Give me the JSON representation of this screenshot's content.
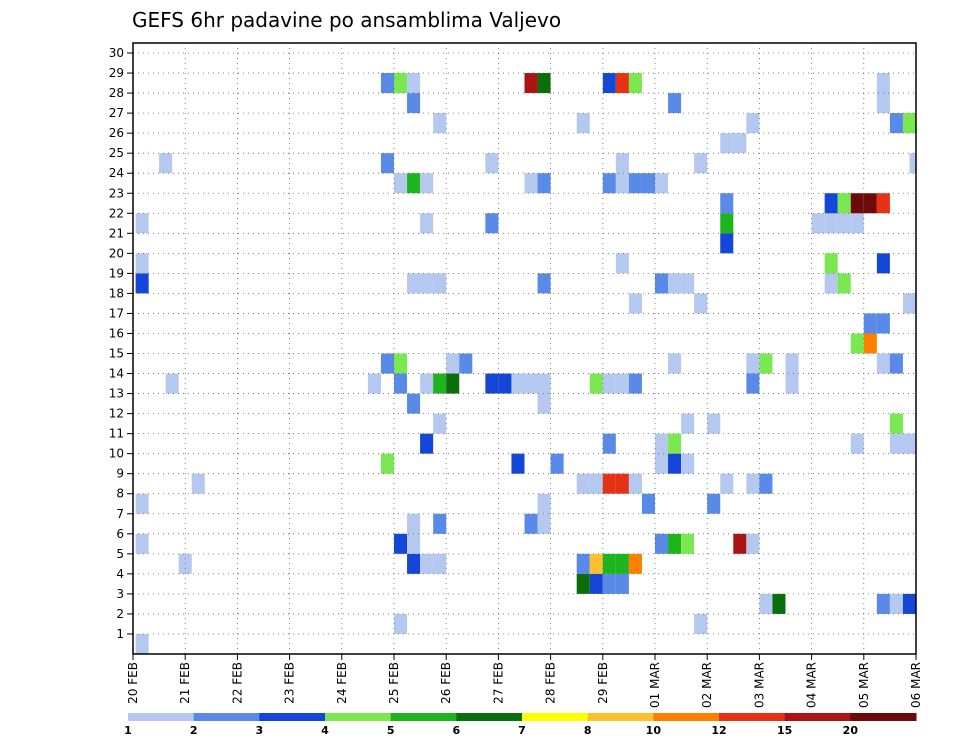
{
  "chart_data": {
    "type": "heatmap",
    "title": "GEFS 6hr padavine po ansamblima Valjevo",
    "xlabel": "",
    "ylabel": "",
    "y_ticks": [
      "1",
      "2",
      "3",
      "4",
      "5",
      "6",
      "7",
      "8",
      "9",
      "10",
      "11",
      "12",
      "13",
      "14",
      "15",
      "16",
      "17",
      "18",
      "19",
      "20",
      "21",
      "22",
      "23",
      "24",
      "25",
      "26",
      "27",
      "28",
      "29",
      "30"
    ],
    "ylim": [
      0,
      30
    ],
    "x_ticks": [
      "20 FEB",
      "21 FEB",
      "22 FEB",
      "23 FEB",
      "24 FEB",
      "25 FEB",
      "26 FEB",
      "27 FEB",
      "28 FEB",
      "29 FEB",
      "01 MAR",
      "02 MAR",
      "03 MAR",
      "04 MAR",
      "05 MAR",
      "06 MAR"
    ],
    "time_steps_per_day": 4,
    "total_steps": 60,
    "grid": "dotted",
    "legend": {
      "placement": "bottom",
      "labels": [
        "1",
        "2",
        "3",
        "4",
        "5",
        "6",
        "7",
        "8",
        "10",
        "12",
        "15",
        "20"
      ],
      "colors": [
        "#b4c8f0",
        "#5a8ae8",
        "#1446d7",
        "#7ae850",
        "#1eb41e",
        "#0a6e0a",
        "#ffff00",
        "#ffc030",
        "#ff8000",
        "#e63214",
        "#aa1414",
        "#6e0a0a"
      ]
    },
    "cells": [
      {
        "m": 1,
        "t": 0.2,
        "v": 1
      },
      {
        "m": 2,
        "t": 20,
        "v": 1
      },
      {
        "m": 2,
        "t": 43,
        "v": 1
      },
      {
        "m": 3,
        "t": 48,
        "v": 1
      },
      {
        "m": 3,
        "t": 49,
        "v": 6
      },
      {
        "m": 3,
        "t": 57,
        "v": 2
      },
      {
        "m": 3,
        "t": 58,
        "v": 1
      },
      {
        "m": 3,
        "t": 59,
        "v": 3
      },
      {
        "m": 4,
        "t": 34,
        "v": 6
      },
      {
        "m": 4,
        "t": 35,
        "v": 3
      },
      {
        "m": 4,
        "t": 36,
        "v": 2
      },
      {
        "m": 4,
        "t": 37,
        "v": 2
      },
      {
        "m": 5,
        "t": 3.5,
        "v": 1
      },
      {
        "m": 5,
        "t": 21,
        "v": 3
      },
      {
        "m": 5,
        "t": 22,
        "v": 1
      },
      {
        "m": 5,
        "t": 23,
        "v": 1
      },
      {
        "m": 5,
        "t": 34,
        "v": 2
      },
      {
        "m": 5,
        "t": 35,
        "v": 8
      },
      {
        "m": 5,
        "t": 36,
        "v": 5
      },
      {
        "m": 5,
        "t": 37,
        "v": 5
      },
      {
        "m": 5,
        "t": 38,
        "v": 10
      },
      {
        "m": 6,
        "t": 0.2,
        "v": 1
      },
      {
        "m": 6,
        "t": 20,
        "v": 3
      },
      {
        "m": 6,
        "t": 21,
        "v": 1
      },
      {
        "m": 6,
        "t": 40,
        "v": 2
      },
      {
        "m": 6,
        "t": 41,
        "v": 5
      },
      {
        "m": 6,
        "t": 42,
        "v": 4
      },
      {
        "m": 6,
        "t": 46,
        "v": 15
      },
      {
        "m": 6,
        "t": 47,
        "v": 1
      },
      {
        "m": 7,
        "t": 21,
        "v": 1
      },
      {
        "m": 7,
        "t": 23,
        "v": 2
      },
      {
        "m": 7,
        "t": 30,
        "v": 2
      },
      {
        "m": 7,
        "t": 31,
        "v": 1
      },
      {
        "m": 8,
        "t": 0.2,
        "v": 1
      },
      {
        "m": 8,
        "t": 31,
        "v": 1
      },
      {
        "m": 8,
        "t": 39,
        "v": 2
      },
      {
        "m": 8,
        "t": 44,
        "v": 2
      },
      {
        "m": 9,
        "t": 4.5,
        "v": 1
      },
      {
        "m": 9,
        "t": 34,
        "v": 1
      },
      {
        "m": 9,
        "t": 35,
        "v": 1
      },
      {
        "m": 9,
        "t": 36,
        "v": 12
      },
      {
        "m": 9,
        "t": 37,
        "v": 12
      },
      {
        "m": 9,
        "t": 38,
        "v": 1
      },
      {
        "m": 9,
        "t": 45,
        "v": 1
      },
      {
        "m": 9,
        "t": 47,
        "v": 1
      },
      {
        "m": 9,
        "t": 48,
        "v": 2
      },
      {
        "m": 10,
        "t": 19,
        "v": 4
      },
      {
        "m": 10,
        "t": 29,
        "v": 3
      },
      {
        "m": 10,
        "t": 32,
        "v": 2
      },
      {
        "m": 10,
        "t": 40,
        "v": 1
      },
      {
        "m": 10,
        "t": 41,
        "v": 3
      },
      {
        "m": 10,
        "t": 42,
        "v": 1
      },
      {
        "m": 11,
        "t": 22,
        "v": 3
      },
      {
        "m": 11,
        "t": 36,
        "v": 2
      },
      {
        "m": 11,
        "t": 40,
        "v": 1
      },
      {
        "m": 11,
        "t": 41,
        "v": 4
      },
      {
        "m": 11,
        "t": 55,
        "v": 1
      },
      {
        "m": 11,
        "t": 58,
        "v": 1
      },
      {
        "m": 11,
        "t": 59,
        "v": 1
      },
      {
        "m": 12,
        "t": 23,
        "v": 1
      },
      {
        "m": 12,
        "t": 42,
        "v": 1
      },
      {
        "m": 12,
        "t": 44,
        "v": 1
      },
      {
        "m": 12,
        "t": 58,
        "v": 4
      },
      {
        "m": 13,
        "t": 21,
        "v": 2
      },
      {
        "m": 13,
        "t": 31,
        "v": 1
      },
      {
        "m": 14,
        "t": 2.5,
        "v": 1
      },
      {
        "m": 14,
        "t": 18,
        "v": 1
      },
      {
        "m": 14,
        "t": 20,
        "v": 2
      },
      {
        "m": 14,
        "t": 22,
        "v": 1
      },
      {
        "m": 14,
        "t": 23,
        "v": 5
      },
      {
        "m": 14,
        "t": 24,
        "v": 6
      },
      {
        "m": 14,
        "t": 27,
        "v": 3
      },
      {
        "m": 14,
        "t": 28,
        "v": 3
      },
      {
        "m": 14,
        "t": 29,
        "v": 1
      },
      {
        "m": 14,
        "t": 30,
        "v": 1
      },
      {
        "m": 14,
        "t": 31,
        "v": 1
      },
      {
        "m": 14,
        "t": 35,
        "v": 4
      },
      {
        "m": 14,
        "t": 36,
        "v": 1
      },
      {
        "m": 14,
        "t": 37,
        "v": 1
      },
      {
        "m": 14,
        "t": 38,
        "v": 2
      },
      {
        "m": 14,
        "t": 47,
        "v": 2
      },
      {
        "m": 14,
        "t": 50,
        "v": 1
      },
      {
        "m": 15,
        "t": 19,
        "v": 2
      },
      {
        "m": 15,
        "t": 20,
        "v": 4
      },
      {
        "m": 15,
        "t": 24,
        "v": 1
      },
      {
        "m": 15,
        "t": 25,
        "v": 2
      },
      {
        "m": 15,
        "t": 41,
        "v": 1
      },
      {
        "m": 15,
        "t": 47,
        "v": 1
      },
      {
        "m": 15,
        "t": 48,
        "v": 4
      },
      {
        "m": 15,
        "t": 50,
        "v": 1
      },
      {
        "m": 15,
        "t": 57,
        "v": 1
      },
      {
        "m": 15,
        "t": 58,
        "v": 2
      },
      {
        "m": 16,
        "t": 55,
        "v": 4
      },
      {
        "m": 16,
        "t": 56,
        "v": 10
      },
      {
        "m": 17,
        "t": 56,
        "v": 2
      },
      {
        "m": 17,
        "t": 57,
        "v": 2
      },
      {
        "m": 18,
        "t": 38,
        "v": 1
      },
      {
        "m": 18,
        "t": 43,
        "v": 1
      },
      {
        "m": 18,
        "t": 59,
        "v": 1
      },
      {
        "m": 19,
        "t": 0.2,
        "v": 3
      },
      {
        "m": 19,
        "t": 21,
        "v": 1
      },
      {
        "m": 19,
        "t": 22,
        "v": 1
      },
      {
        "m": 19,
        "t": 23,
        "v": 1
      },
      {
        "m": 19,
        "t": 31,
        "v": 2
      },
      {
        "m": 19,
        "t": 40,
        "v": 2
      },
      {
        "m": 19,
        "t": 41,
        "v": 1
      },
      {
        "m": 19,
        "t": 42,
        "v": 1
      },
      {
        "m": 19,
        "t": 53,
        "v": 1
      },
      {
        "m": 19,
        "t": 54,
        "v": 4
      },
      {
        "m": 20,
        "t": 0.2,
        "v": 1
      },
      {
        "m": 20,
        "t": 37,
        "v": 1
      },
      {
        "m": 20,
        "t": 53,
        "v": 4
      },
      {
        "m": 20,
        "t": 57,
        "v": 3
      },
      {
        "m": 21,
        "t": 45,
        "v": 3
      },
      {
        "m": 22,
        "t": 0.2,
        "v": 1
      },
      {
        "m": 22,
        "t": 22,
        "v": 1
      },
      {
        "m": 22,
        "t": 27,
        "v": 2
      },
      {
        "m": 22,
        "t": 45,
        "v": 5
      },
      {
        "m": 22,
        "t": 52,
        "v": 1
      },
      {
        "m": 22,
        "t": 53,
        "v": 1
      },
      {
        "m": 22,
        "t": 54,
        "v": 1
      },
      {
        "m": 22,
        "t": 55,
        "v": 1
      },
      {
        "m": 23,
        "t": 45,
        "v": 2
      },
      {
        "m": 23,
        "t": 53,
        "v": 3
      },
      {
        "m": 23,
        "t": 54,
        "v": 4
      },
      {
        "m": 23,
        "t": 55,
        "v": 20
      },
      {
        "m": 23,
        "t": 56,
        "v": 20
      },
      {
        "m": 23,
        "t": 57,
        "v": 12
      },
      {
        "m": 24,
        "t": 20,
        "v": 1
      },
      {
        "m": 24,
        "t": 21,
        "v": 5
      },
      {
        "m": 24,
        "t": 22,
        "v": 1
      },
      {
        "m": 24,
        "t": 30,
        "v": 1
      },
      {
        "m": 24,
        "t": 31,
        "v": 2
      },
      {
        "m": 24,
        "t": 36,
        "v": 2
      },
      {
        "m": 24,
        "t": 37,
        "v": 1
      },
      {
        "m": 24,
        "t": 38,
        "v": 2
      },
      {
        "m": 24,
        "t": 39,
        "v": 2
      },
      {
        "m": 24,
        "t": 40,
        "v": 1
      },
      {
        "m": 25,
        "t": 2,
        "v": 1
      },
      {
        "m": 25,
        "t": 19,
        "v": 2
      },
      {
        "m": 25,
        "t": 27,
        "v": 1
      },
      {
        "m": 25,
        "t": 37,
        "v": 1
      },
      {
        "m": 25,
        "t": 43,
        "v": 1
      },
      {
        "m": 25,
        "t": 59.5,
        "v": 1
      },
      {
        "m": 26,
        "t": 45,
        "v": 1
      },
      {
        "m": 26,
        "t": 46,
        "v": 1
      },
      {
        "m": 27,
        "t": 23,
        "v": 1
      },
      {
        "m": 27,
        "t": 34,
        "v": 1
      },
      {
        "m": 27,
        "t": 47,
        "v": 1
      },
      {
        "m": 27,
        "t": 58,
        "v": 2
      },
      {
        "m": 27,
        "t": 59,
        "v": 4
      },
      {
        "m": 28,
        "t": 21,
        "v": 2
      },
      {
        "m": 28,
        "t": 41,
        "v": 2
      },
      {
        "m": 28,
        "t": 57,
        "v": 1
      },
      {
        "m": 29,
        "t": 19,
        "v": 2
      },
      {
        "m": 29,
        "t": 20,
        "v": 4
      },
      {
        "m": 29,
        "t": 21,
        "v": 1
      },
      {
        "m": 29,
        "t": 30,
        "v": 15
      },
      {
        "m": 29,
        "t": 31,
        "v": 6
      },
      {
        "m": 29,
        "t": 36,
        "v": 3
      },
      {
        "m": 29,
        "t": 37,
        "v": 12
      },
      {
        "m": 29,
        "t": 38,
        "v": 4
      },
      {
        "m": 29,
        "t": 57,
        "v": 1
      }
    ]
  }
}
